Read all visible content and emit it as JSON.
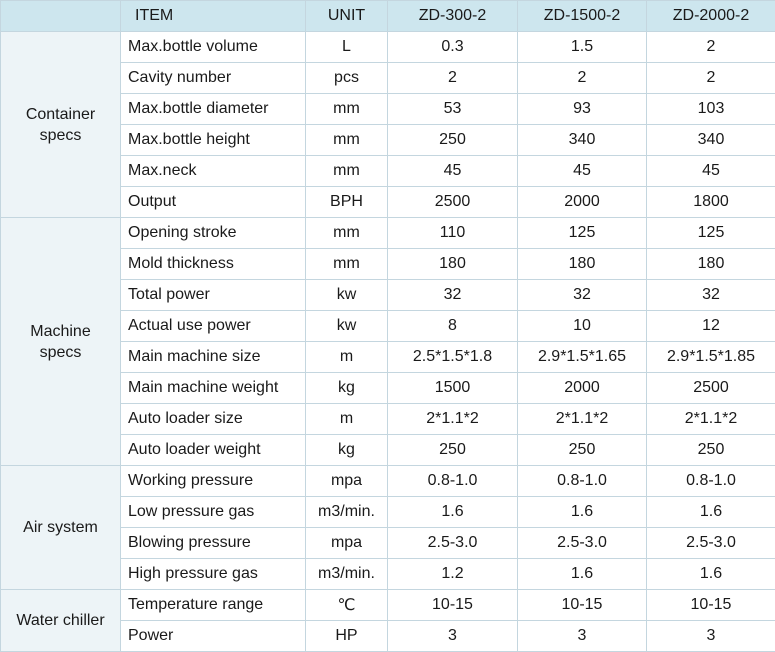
{
  "header": {
    "item": "ITEM",
    "unit": "UNIT",
    "models": [
      "ZD-300-2",
      "ZD-1500-2",
      "ZD-2000-2"
    ]
  },
  "groups": [
    {
      "label": "Container\nspecs",
      "rows": [
        {
          "item": "Max.bottle volume",
          "unit": "L",
          "values": [
            "0.3",
            "1.5",
            "2"
          ]
        },
        {
          "item": "Cavity number",
          "unit": "pcs",
          "values": [
            "2",
            "2",
            "2"
          ]
        },
        {
          "item": "Max.bottle diameter",
          "unit": "mm",
          "values": [
            "53",
            "93",
            "103"
          ]
        },
        {
          "item": "Max.bottle height",
          "unit": "mm",
          "values": [
            "250",
            "340",
            "340"
          ]
        },
        {
          "item": "Max.neck",
          "unit": "mm",
          "values": [
            "45",
            "45",
            "45"
          ]
        },
        {
          "item": "Output",
          "unit": "BPH",
          "values": [
            "2500",
            "2000",
            "1800"
          ]
        }
      ]
    },
    {
      "label": "Machine\nspecs",
      "rows": [
        {
          "item": "Opening stroke",
          "unit": "mm",
          "values": [
            "110",
            "125",
            "125"
          ]
        },
        {
          "item": "Mold thickness",
          "unit": "mm",
          "values": [
            "180",
            "180",
            "180"
          ]
        },
        {
          "item": "Total power",
          "unit": "kw",
          "values": [
            "32",
            "32",
            "32"
          ]
        },
        {
          "item": "Actual use power",
          "unit": "kw",
          "values": [
            "8",
            "10",
            "12"
          ]
        },
        {
          "item": "Main machine size",
          "unit": "m",
          "values": [
            "2.5*1.5*1.8",
            "2.9*1.5*1.65",
            "2.9*1.5*1.85"
          ]
        },
        {
          "item": "Main machine weight",
          "unit": "kg",
          "values": [
            "1500",
            "2000",
            "2500"
          ]
        },
        {
          "item": "Auto loader size",
          "unit": "m",
          "values": [
            "2*1.1*2",
            "2*1.1*2",
            "2*1.1*2"
          ]
        },
        {
          "item": "Auto loader weight",
          "unit": "kg",
          "values": [
            "250",
            "250",
            "250"
          ]
        }
      ]
    },
    {
      "label": "Air system",
      "rows": [
        {
          "item": "Working pressure",
          "unit": "mpa",
          "values": [
            "0.8-1.0",
            "0.8-1.0",
            "0.8-1.0"
          ]
        },
        {
          "item": "Low pressure gas",
          "unit": "m3/min.",
          "values": [
            "1.6",
            "1.6",
            "1.6"
          ]
        },
        {
          "item": "Blowing pressure",
          "unit": "mpa",
          "values": [
            "2.5-3.0",
            "2.5-3.0",
            "2.5-3.0"
          ]
        },
        {
          "item": "High pressure gas",
          "unit": "m3/min.",
          "values": [
            "1.2",
            "1.6",
            "1.6"
          ]
        }
      ]
    },
    {
      "label": "Water chiller",
      "rows": [
        {
          "item": "Temperature range",
          "unit": "℃",
          "values": [
            "10-15",
            "10-15",
            "10-15"
          ]
        },
        {
          "item": "Power",
          "unit": "HP",
          "values": [
            "3",
            "3",
            "3"
          ]
        }
      ]
    }
  ]
}
